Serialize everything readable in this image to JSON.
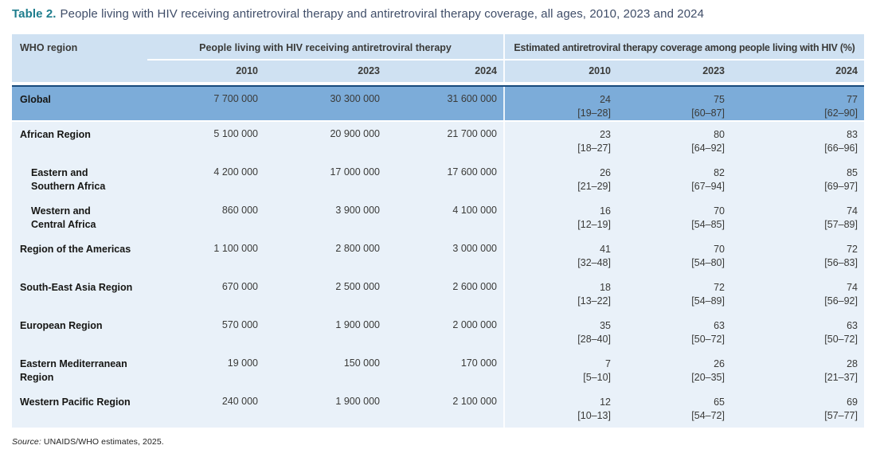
{
  "title": {
    "prefix": "Table 2.",
    "text": "People living with HIV receiving antiretroviral therapy and antiretroviral therapy coverage, all ages, 2010, 2023 and 2024"
  },
  "colors": {
    "title_prefix": "#1e7d8d",
    "title_text": "#3f4d68",
    "header_bg": "#cfe1f2",
    "global_row_bg": "#7cacd9",
    "global_row_top_border": "#174a7c",
    "body_bg": "#e9f1f9"
  },
  "table": {
    "region_header": "WHO region",
    "groups": [
      {
        "label": "People living with HIV receiving antiretroviral therapy",
        "years": [
          "2010",
          "2023",
          "2024"
        ]
      },
      {
        "label": "Estimated antiretroviral therapy coverage among people living with HIV (%)",
        "years": [
          "2010",
          "2023",
          "2024"
        ]
      }
    ],
    "global_row": {
      "region": "Global",
      "art": [
        "7 700 000",
        "30 300 000",
        "31 600 000"
      ],
      "coverage": [
        {
          "value": "24",
          "range": "[19–28]"
        },
        {
          "value": "75",
          "range": "[60–87]"
        },
        {
          "value": "77",
          "range": "[62–90]"
        }
      ]
    },
    "rows": [
      {
        "region": "African Region",
        "indent": false,
        "art": [
          "5 100 000",
          "20 900 000",
          "21 700 000"
        ],
        "coverage": [
          {
            "value": "23",
            "range": "[18–27]"
          },
          {
            "value": "80",
            "range": "[64–92]"
          },
          {
            "value": "83",
            "range": "[66–96]"
          }
        ]
      },
      {
        "region": "Eastern and\nSouthern Africa",
        "indent": true,
        "art": [
          "4 200 000",
          "17 000 000",
          "17 600 000"
        ],
        "coverage": [
          {
            "value": "26",
            "range": "[21–29]"
          },
          {
            "value": "82",
            "range": "[67–94]"
          },
          {
            "value": "85",
            "range": "[69–97]"
          }
        ]
      },
      {
        "region": "Western and\nCentral Africa",
        "indent": true,
        "art": [
          "860 000",
          "3 900 000",
          "4 100 000"
        ],
        "coverage": [
          {
            "value": "16",
            "range": "[12–19]"
          },
          {
            "value": "70",
            "range": "[54–85]"
          },
          {
            "value": "74",
            "range": "[57–89]"
          }
        ]
      },
      {
        "region": "Region of the Americas",
        "indent": false,
        "art": [
          "1 100 000",
          "2 800 000",
          "3 000 000"
        ],
        "coverage": [
          {
            "value": "41",
            "range": "[32–48]"
          },
          {
            "value": "70",
            "range": "[54–80]"
          },
          {
            "value": "72",
            "range": "[56–83]"
          }
        ]
      },
      {
        "region": "South-East Asia Region",
        "indent": false,
        "art": [
          "670 000",
          "2 500 000",
          "2 600 000"
        ],
        "coverage": [
          {
            "value": "18",
            "range": "[13–22]"
          },
          {
            "value": "72",
            "range": "[54–89]"
          },
          {
            "value": "74",
            "range": "[56–92]"
          }
        ]
      },
      {
        "region": "European Region",
        "indent": false,
        "art": [
          "570 000",
          "1 900 000",
          "2 000 000"
        ],
        "coverage": [
          {
            "value": "35",
            "range": "[28–40]"
          },
          {
            "value": "63",
            "range": "[50–72]"
          },
          {
            "value": "63",
            "range": "[50–72]"
          }
        ]
      },
      {
        "region": "Eastern Mediterranean\nRegion",
        "indent": false,
        "art": [
          "19 000",
          "150 000",
          "170 000"
        ],
        "coverage": [
          {
            "value": "7",
            "range": "[5–10]"
          },
          {
            "value": "26",
            "range": "[20–35]"
          },
          {
            "value": "28",
            "range": "[21–37]"
          }
        ]
      },
      {
        "region": "Western Pacific Region",
        "indent": false,
        "art": [
          "240 000",
          "1 900 000",
          "2 100 000"
        ],
        "coverage": [
          {
            "value": "12",
            "range": "[10–13]"
          },
          {
            "value": "65",
            "range": "[54–72]"
          },
          {
            "value": "69",
            "range": "[57–77]"
          }
        ]
      }
    ]
  },
  "footer": {
    "source_label": "Source:",
    "source_text": " UNAIDS/WHO estimates, 2025."
  }
}
